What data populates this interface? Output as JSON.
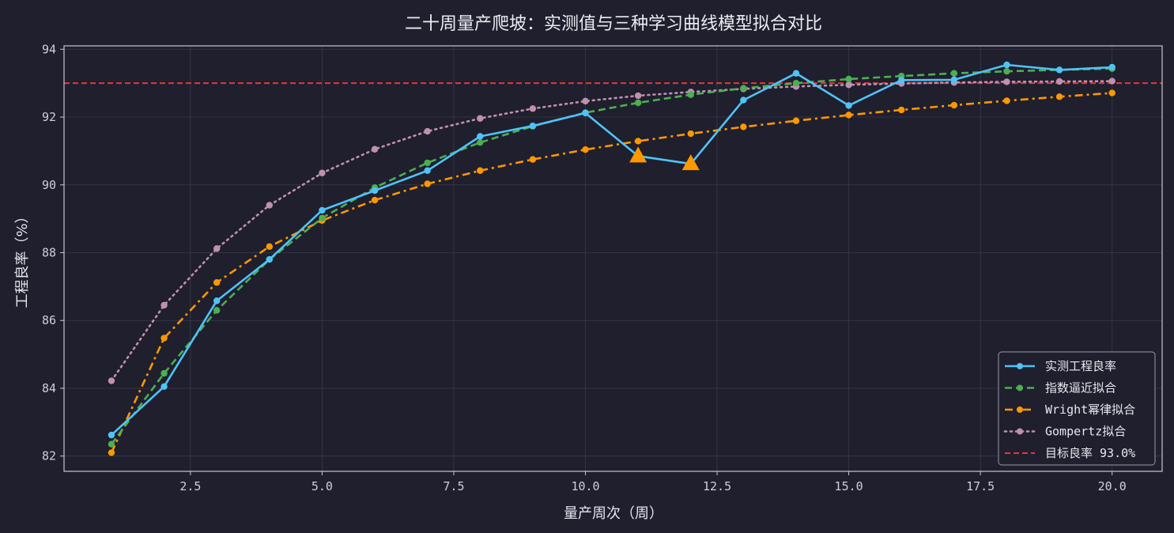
{
  "chart_data": {
    "type": "line",
    "title": "二十周量产爬坡：实测值与三种学习曲线模型拟合对比",
    "xlabel": "量产周次（周）",
    "ylabel": "工程良率（%）",
    "xlim": [
      0.1,
      20.95
    ],
    "ylim": [
      81.55,
      94.1
    ],
    "xticks": [
      2.5,
      5.0,
      7.5,
      10.0,
      12.5,
      15.0,
      17.5,
      20.0
    ],
    "xtick_labels": [
      "2.5",
      "5.0",
      "7.5",
      "10.0",
      "12.5",
      "15.0",
      "17.5",
      "20.0"
    ],
    "yticks": [
      82,
      84,
      86,
      88,
      90,
      92,
      94
    ],
    "ytick_labels": [
      "82",
      "84",
      "86",
      "88",
      "90",
      "92",
      "94"
    ],
    "grid": true,
    "legend_position": "bottom-right",
    "x": [
      1,
      2,
      3,
      4,
      5,
      6,
      7,
      8,
      9,
      10,
      11,
      12,
      13,
      14,
      15,
      16,
      17,
      18,
      19,
      20
    ],
    "series": [
      {
        "name": "实测工程良率",
        "color": "#4fc3f7",
        "style": "solid",
        "values": [
          82.62,
          84.05,
          86.58,
          87.8,
          89.25,
          89.83,
          90.42,
          91.43,
          91.74,
          92.12,
          90.85,
          90.62,
          92.5,
          93.29,
          92.34,
          93.09,
          93.1,
          93.54,
          93.39,
          93.47
        ]
      },
      {
        "name": "指数逼近拟合",
        "color": "#4caf50",
        "style": "dashed",
        "values": [
          82.35,
          84.44,
          86.3,
          87.8,
          89.02,
          89.92,
          90.65,
          91.25,
          91.73,
          92.13,
          92.42,
          92.66,
          92.85,
          93.0,
          93.12,
          93.21,
          93.29,
          93.35,
          93.39,
          93.43
        ]
      },
      {
        "name": "Wright幂律拟合",
        "color": "#ff9800",
        "style": "dashdot",
        "values": [
          82.1,
          85.48,
          87.12,
          88.18,
          88.95,
          89.55,
          90.03,
          90.42,
          90.75,
          91.04,
          91.29,
          91.51,
          91.71,
          91.89,
          92.06,
          92.21,
          92.35,
          92.48,
          92.6,
          92.71
        ]
      },
      {
        "name": "Gompertz拟合",
        "color": "#c090b0",
        "style": "dotted",
        "values": [
          84.22,
          86.45,
          88.12,
          89.4,
          90.35,
          91.05,
          91.58,
          91.96,
          92.25,
          92.47,
          92.63,
          92.74,
          92.83,
          92.9,
          92.95,
          92.99,
          93.02,
          93.04,
          93.05,
          93.06
        ]
      }
    ],
    "target": {
      "name": "目标良率 93.0%",
      "value": 93.0,
      "color": "#e53935"
    },
    "anomalies": {
      "color": "#ff9800",
      "points": [
        [
          11,
          90.85
        ],
        [
          12,
          90.62
        ]
      ]
    }
  }
}
